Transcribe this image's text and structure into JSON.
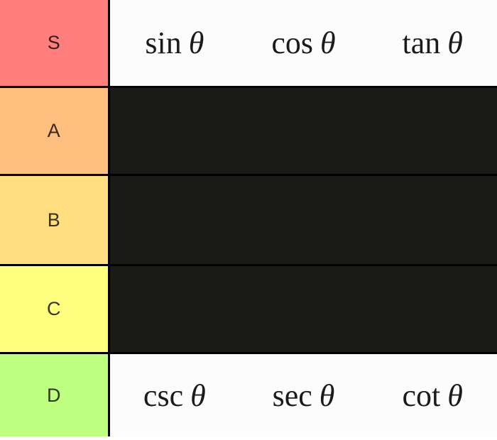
{
  "tiers": [
    {
      "label": "S",
      "color": "#ff7f7f",
      "items": [
        {
          "name": "sin",
          "symbol": "θ"
        },
        {
          "name": "cos",
          "symbol": "θ"
        },
        {
          "name": "tan",
          "symbol": "θ"
        }
      ]
    },
    {
      "label": "A",
      "color": "#ffbf7f",
      "items": []
    },
    {
      "label": "B",
      "color": "#ffdf7f",
      "items": []
    },
    {
      "label": "C",
      "color": "#ffff7f",
      "items": []
    },
    {
      "label": "D",
      "color": "#bfff7f",
      "items": [
        {
          "name": "csc",
          "symbol": "θ"
        },
        {
          "name": "sec",
          "symbol": "θ"
        },
        {
          "name": "cot",
          "symbol": "θ"
        }
      ]
    }
  ],
  "colors": {
    "row_empty_bg": "#1a1a17",
    "row_filled_bg": "#fcfcfc",
    "border": "#000000",
    "item_text": "#1b1b1b"
  }
}
